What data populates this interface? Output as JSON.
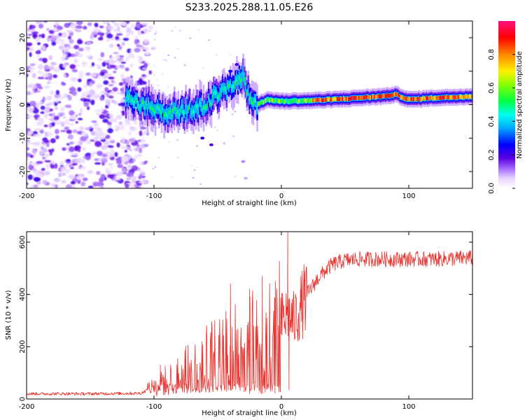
{
  "title": "S233.2025.288.11.05.E26",
  "colors": {
    "snr_line": "#e8322d",
    "colormap": [
      "#ffffff",
      "#e6d2ff",
      "#8a2be2",
      "#3a00d6",
      "#0000ff",
      "#00e5ff",
      "#00ff66",
      "#aaff00",
      "#ffff00",
      "#ff8c00",
      "#ff0000",
      "#ff1493"
    ]
  },
  "chart_data": [
    {
      "type": "heatmap",
      "name": "spectrogram",
      "xlabel": "Height of straight line (km)",
      "ylabel": "Frequency (Hz)",
      "xlim": [
        -200,
        150
      ],
      "ylim": [
        -25,
        25
      ],
      "xticks": [
        -200,
        -100,
        0,
        100
      ],
      "yticks": [
        -20,
        -10,
        0,
        10,
        20
      ],
      "colorbar": {
        "label": "Normalized spectral amplitude",
        "range": [
          0.0,
          1.0
        ],
        "ticks": [
          "0.0",
          "0.2",
          "0.4",
          "0.6",
          "0.8"
        ]
      },
      "features": {
        "noise_region_km": [
          -200,
          -105
        ],
        "carrier_track": [
          [
            -120,
            1.5
          ],
          [
            -110,
            0
          ],
          [
            -100,
            -1
          ],
          [
            -90,
            -3
          ],
          [
            -80,
            -2
          ],
          [
            -70,
            -1
          ],
          [
            -60,
            0
          ],
          [
            -50,
            3
          ],
          [
            -40,
            5
          ],
          [
            -30,
            8
          ],
          [
            -25,
            2
          ],
          [
            -20,
            0
          ],
          [
            -10,
            1.5
          ],
          [
            0,
            1
          ],
          [
            20,
            1.2
          ],
          [
            40,
            1.5
          ],
          [
            60,
            2
          ],
          [
            80,
            2.5
          ],
          [
            90,
            3
          ],
          [
            100,
            1.5
          ],
          [
            120,
            2
          ],
          [
            150,
            2.5
          ]
        ],
        "peak_amplitude_region_km": [
          30,
          150
        ]
      }
    },
    {
      "type": "line",
      "name": "snr",
      "xlabel": "Height of straight line (km)",
      "ylabel": "SNR (10 * v/v)",
      "xlim": [
        -200,
        150
      ],
      "ylim": [
        0,
        640
      ],
      "xticks": [
        -200,
        -100,
        0,
        100
      ],
      "yticks": [
        0,
        200,
        400,
        600
      ],
      "envelope": [
        [
          -200,
          20
        ],
        [
          -150,
          20
        ],
        [
          -110,
          22
        ],
        [
          -100,
          50
        ],
        [
          -80,
          95
        ],
        [
          -60,
          155
        ],
        [
          -40,
          205
        ],
        [
          -20,
          230
        ],
        [
          -15,
          90
        ],
        [
          -10,
          255
        ],
        [
          0,
          300
        ],
        [
          5,
          320
        ],
        [
          10,
          300
        ],
        [
          20,
          400
        ],
        [
          30,
          470
        ],
        [
          40,
          515
        ],
        [
          50,
          530
        ],
        [
          60,
          535
        ],
        [
          80,
          535
        ],
        [
          100,
          535
        ],
        [
          120,
          535
        ],
        [
          150,
          540
        ]
      ],
      "spikes": [
        [
          -105,
          60
        ],
        [
          -95,
          130
        ],
        [
          -40,
          440
        ],
        [
          -25,
          420
        ],
        [
          -15,
          470
        ],
        [
          -5,
          385
        ],
        [
          5,
          640
        ],
        [
          6,
          35
        ],
        [
          15,
          420
        ]
      ]
    }
  ]
}
